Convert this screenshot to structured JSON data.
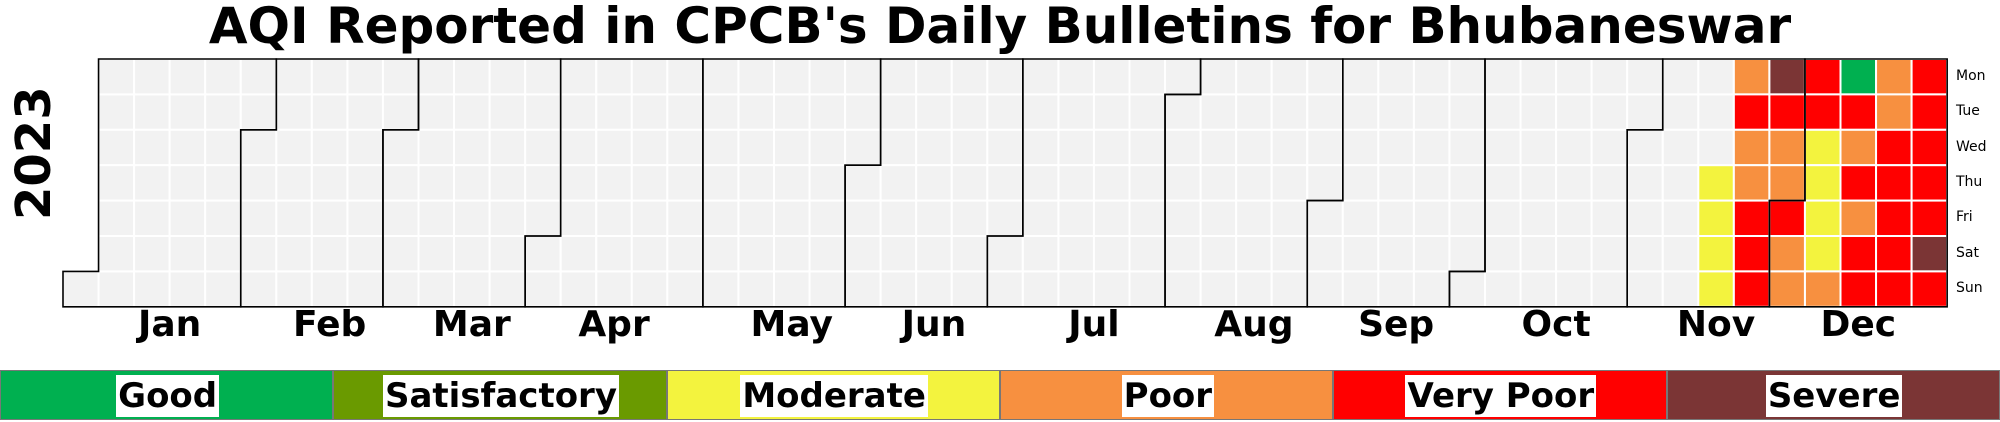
{
  "chart_data": {
    "type": "heatmap",
    "title": "AQI Reported in CPCB's Daily Bulletins for Bhubaneswar",
    "year": "2023",
    "months": [
      "Jan",
      "Feb",
      "Mar",
      "Apr",
      "May",
      "Jun",
      "Jul",
      "Aug",
      "Sep",
      "Oct",
      "Nov",
      "Dec"
    ],
    "weekdays": [
      "Mon",
      "Tue",
      "Wed",
      "Thu",
      "Fri",
      "Sat",
      "Sun"
    ],
    "categories": [
      {
        "name": "Good",
        "color": "#00b050"
      },
      {
        "name": "Satisfactory",
        "color": "#6a9a00"
      },
      {
        "name": "Moderate",
        "color": "#f3f33e"
      },
      {
        "name": "Poor",
        "color": "#f79040"
      },
      {
        "name": "Very Poor",
        "color": "#ff0000"
      },
      {
        "name": "Severe",
        "color": "#7b3535"
      }
    ],
    "no_data_color": "#f2f2f2",
    "daily": [
      {
        "date": "2023-11-16",
        "category": "Moderate"
      },
      {
        "date": "2023-11-17",
        "category": "Moderate"
      },
      {
        "date": "2023-11-18",
        "category": "Moderate"
      },
      {
        "date": "2023-11-19",
        "category": "Moderate"
      },
      {
        "date": "2023-11-20",
        "category": "Poor"
      },
      {
        "date": "2023-11-21",
        "category": "Very Poor"
      },
      {
        "date": "2023-11-22",
        "category": "Poor"
      },
      {
        "date": "2023-11-23",
        "category": "Poor"
      },
      {
        "date": "2023-11-24",
        "category": "Very Poor"
      },
      {
        "date": "2023-11-25",
        "category": "Very Poor"
      },
      {
        "date": "2023-11-26",
        "category": "Very Poor"
      },
      {
        "date": "2023-11-27",
        "category": "Severe"
      },
      {
        "date": "2023-11-28",
        "category": "Very Poor"
      },
      {
        "date": "2023-11-29",
        "category": "Poor"
      },
      {
        "date": "2023-11-30",
        "category": "Poor"
      },
      {
        "date": "2023-12-01",
        "category": "Very Poor"
      },
      {
        "date": "2023-12-02",
        "category": "Poor"
      },
      {
        "date": "2023-12-03",
        "category": "Poor"
      },
      {
        "date": "2023-12-04",
        "category": "Very Poor"
      },
      {
        "date": "2023-12-05",
        "category": "Very Poor"
      },
      {
        "date": "2023-12-06",
        "category": "Moderate"
      },
      {
        "date": "2023-12-07",
        "category": "Moderate"
      },
      {
        "date": "2023-12-08",
        "category": "Moderate"
      },
      {
        "date": "2023-12-09",
        "category": "Moderate"
      },
      {
        "date": "2023-12-10",
        "category": "Poor"
      },
      {
        "date": "2023-12-11",
        "category": "Good"
      },
      {
        "date": "2023-12-12",
        "category": "Very Poor"
      },
      {
        "date": "2023-12-13",
        "category": "Poor"
      },
      {
        "date": "2023-12-14",
        "category": "Very Poor"
      },
      {
        "date": "2023-12-15",
        "category": "Poor"
      },
      {
        "date": "2023-12-16",
        "category": "Very Poor"
      },
      {
        "date": "2023-12-17",
        "category": "Very Poor"
      },
      {
        "date": "2023-12-18",
        "category": "Poor"
      },
      {
        "date": "2023-12-19",
        "category": "Poor"
      },
      {
        "date": "2023-12-20",
        "category": "Very Poor"
      },
      {
        "date": "2023-12-21",
        "category": "Very Poor"
      },
      {
        "date": "2023-12-22",
        "category": "Very Poor"
      },
      {
        "date": "2023-12-23",
        "category": "Very Poor"
      },
      {
        "date": "2023-12-24",
        "category": "Very Poor"
      },
      {
        "date": "2023-12-25",
        "category": "Very Poor"
      },
      {
        "date": "2023-12-26",
        "category": "Very Poor"
      },
      {
        "date": "2023-12-27",
        "category": "Very Poor"
      },
      {
        "date": "2023-12-28",
        "category": "Very Poor"
      },
      {
        "date": "2023-12-29",
        "category": "Very Poor"
      },
      {
        "date": "2023-12-30",
        "category": "Severe"
      },
      {
        "date": "2023-12-31",
        "category": "Very Poor"
      }
    ]
  }
}
